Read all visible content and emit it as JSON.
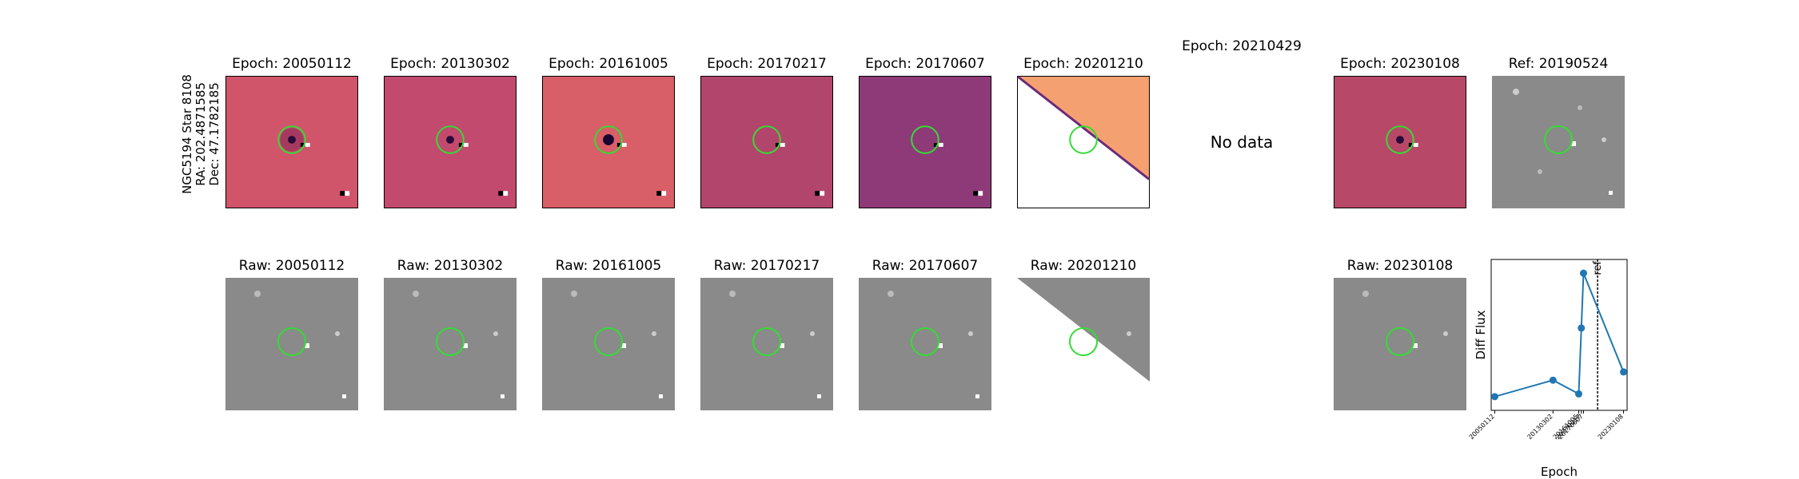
{
  "target": {
    "name": "NGC5194 Star 8108",
    "ra": "RA: 202.4871585",
    "dec": "Dec: 47.1782185"
  },
  "diff_titles": [
    "Epoch: 20050112",
    "Epoch: 20130302",
    "Epoch: 20161005",
    "Epoch: 20170217",
    "Epoch: 20170607",
    "Epoch: 20201210",
    "Epoch: 20210429",
    "Epoch: 20230108",
    "Ref: 20190524"
  ],
  "raw_titles": [
    "Raw: 20050112",
    "Raw: 20130302",
    "Raw: 20161005",
    "Raw: 20170217",
    "Raw: 20170607",
    "Raw: 20201210",
    "Raw: 20230108"
  ],
  "no_data_text": "No data",
  "colors": {
    "circle": "#33dd33",
    "series": "#1f77b4"
  },
  "chart_data": {
    "type": "line",
    "xlabel": "Epoch",
    "ylabel": "Diff Flux",
    "categories": [
      "20050112",
      "20130302",
      "20161005",
      "20170217",
      "20170607",
      "20230108"
    ],
    "x": [
      2005.03,
      2013.17,
      2016.76,
      2017.13,
      2017.43,
      2023.02
    ],
    "values": [
      0.5,
      1.1,
      0.6,
      3.0,
      5.0,
      1.4
    ],
    "ylim": [
      0,
      5.5
    ],
    "ref_line": {
      "x": 2019.4,
      "label": "ref"
    }
  }
}
